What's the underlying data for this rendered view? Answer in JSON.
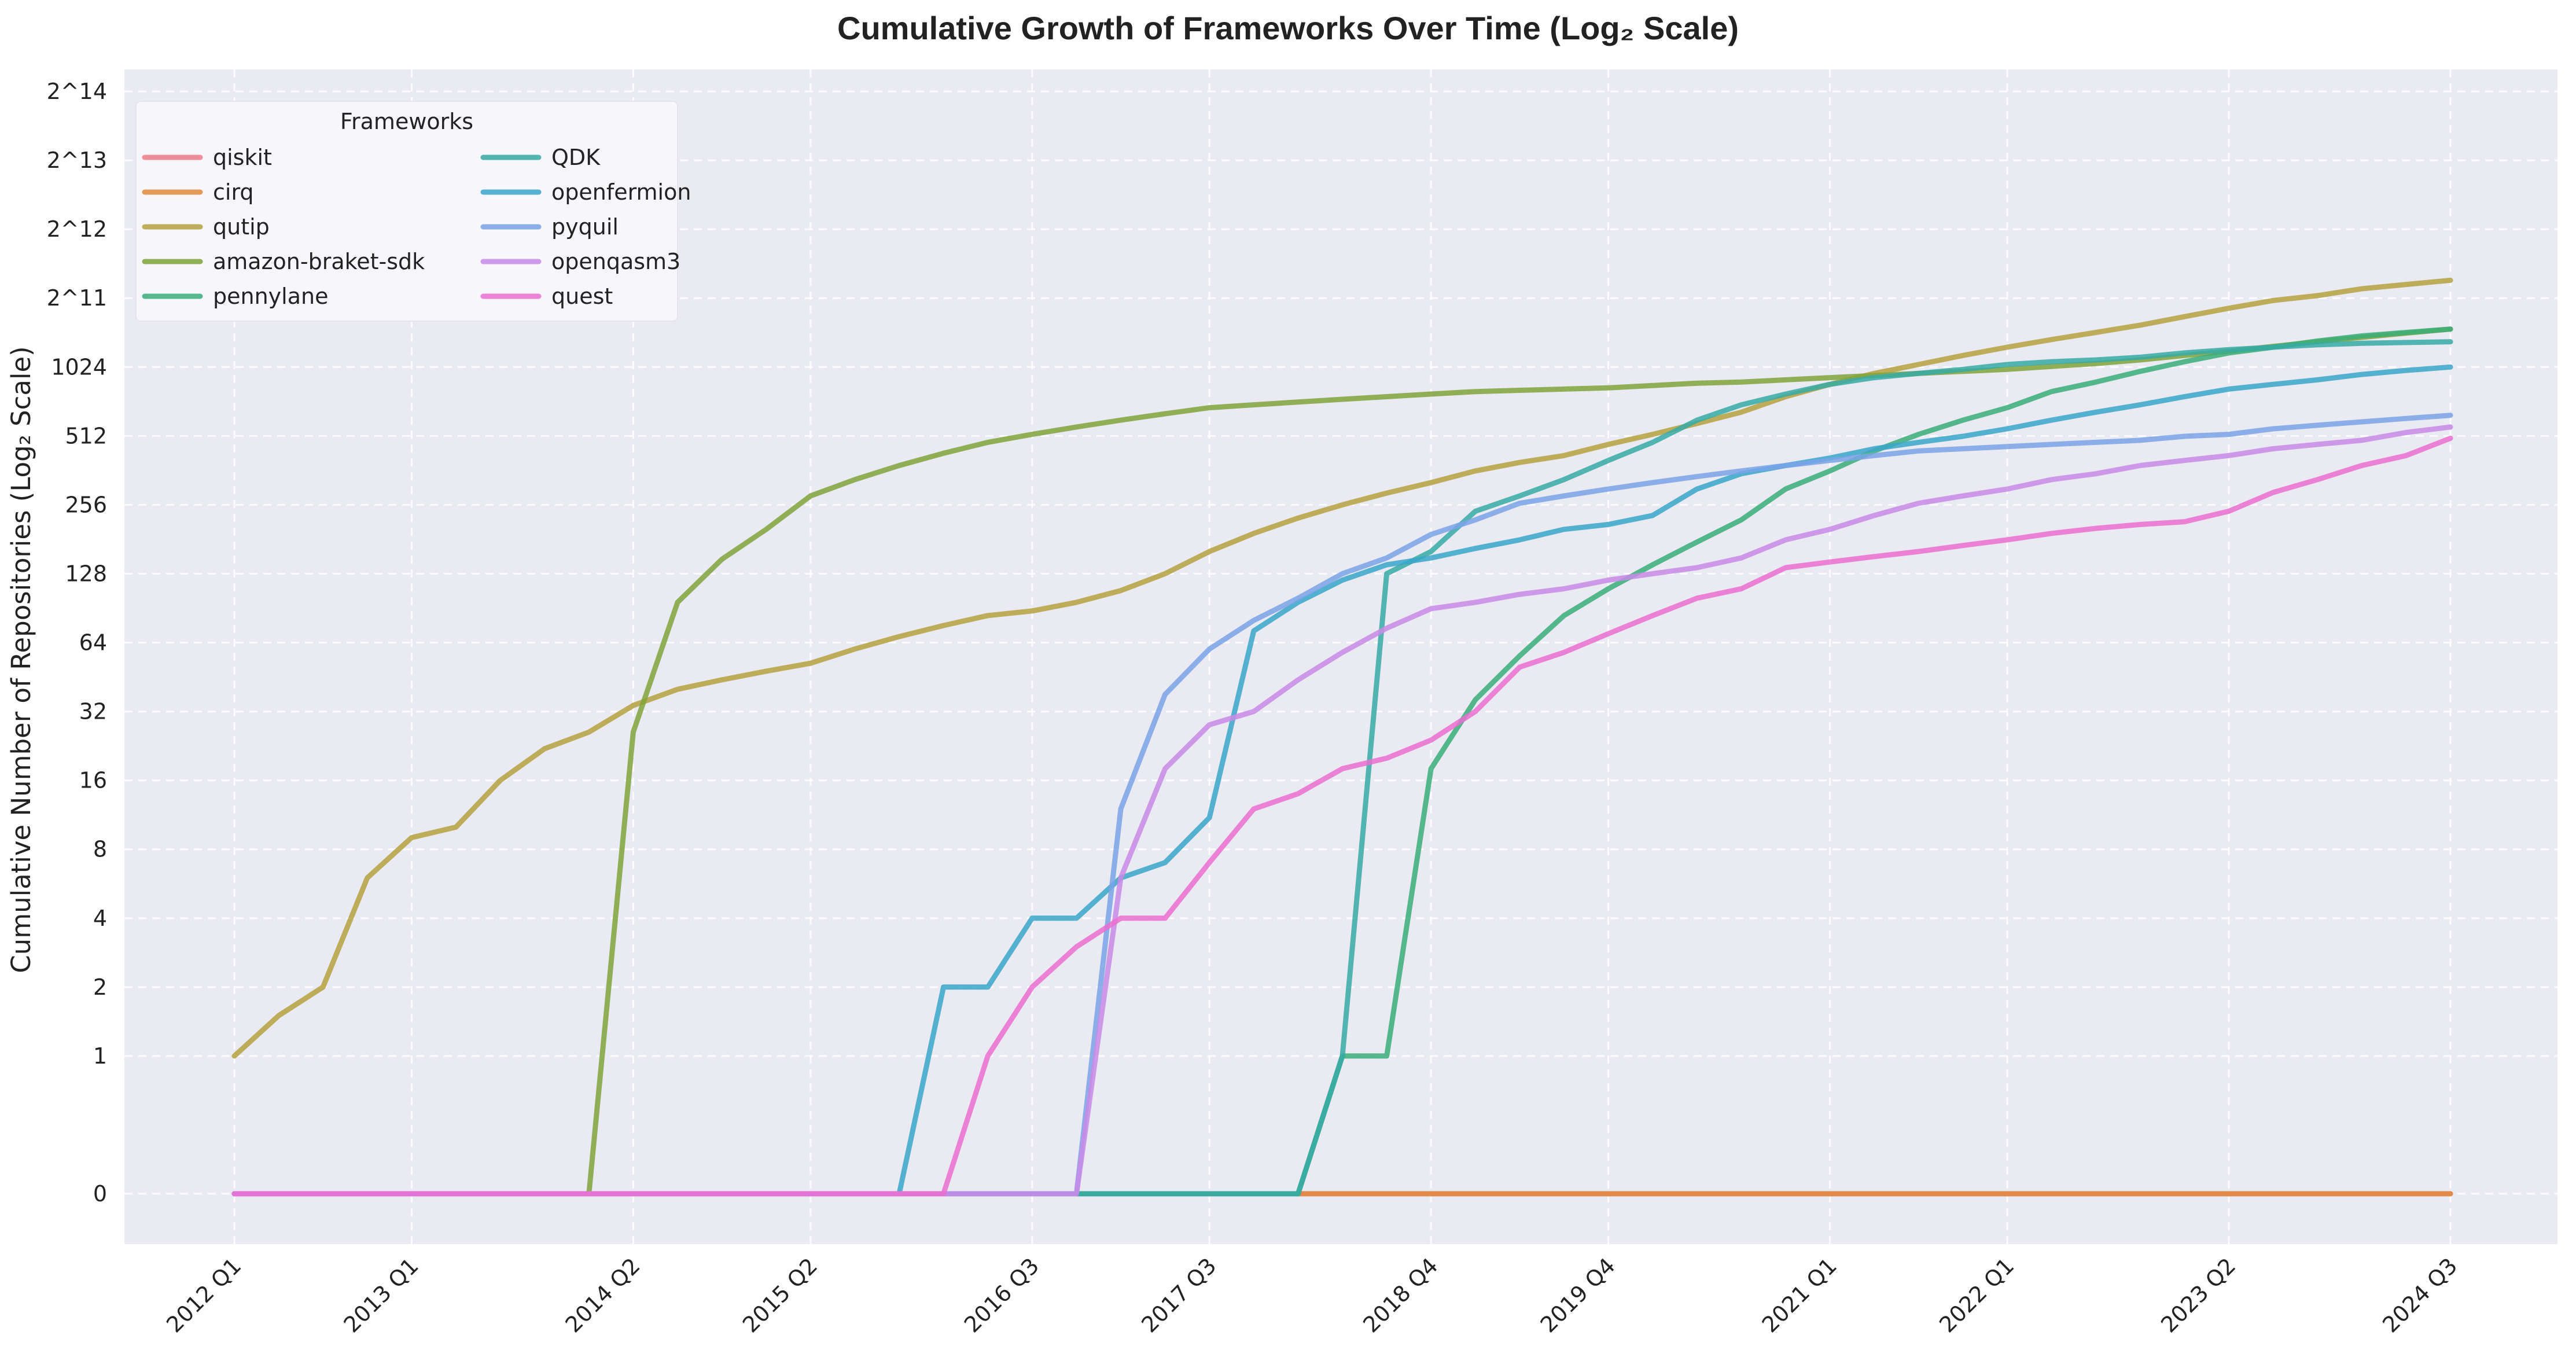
{
  "chart_data": {
    "type": "line",
    "title": "Cumulative Growth of Frameworks Over Time (Log₂ Scale)",
    "xlabel": "",
    "ylabel": "Cumulative Number of Repositories (Log₂ Scale)",
    "yscale": "symlog-base2",
    "grid": true,
    "legend": {
      "title": "Frameworks",
      "placement": "top-left",
      "columns": 2
    },
    "x_ticks": [
      "2012 Q1",
      "2013 Q1",
      "2014 Q2",
      "2015 Q2",
      "2016 Q3",
      "2017 Q3",
      "2018 Q4",
      "2019 Q4",
      "2021 Q1",
      "2022 Q1",
      "2023 Q2",
      "2024 Q3"
    ],
    "y_ticks": [
      {
        "value": 0,
        "label": "0"
      },
      {
        "value": 1,
        "label": "1"
      },
      {
        "value": 2,
        "label": "2"
      },
      {
        "value": 4,
        "label": "4"
      },
      {
        "value": 8,
        "label": "8"
      },
      {
        "value": 16,
        "label": "16"
      },
      {
        "value": 32,
        "label": "32"
      },
      {
        "value": 64,
        "label": "64"
      },
      {
        "value": 128,
        "label": "128"
      },
      {
        "value": 256,
        "label": "256"
      },
      {
        "value": 512,
        "label": "512"
      },
      {
        "value": 1024,
        "label": "1024"
      },
      {
        "value": 2048,
        "label": "2^11"
      },
      {
        "value": 4096,
        "label": "2^12"
      },
      {
        "value": 8192,
        "label": "2^13"
      },
      {
        "value": 16384,
        "label": "2^14"
      }
    ],
    "x": [
      "2012 Q1",
      "2012 Q2",
      "2012 Q3",
      "2012 Q4",
      "2013 Q1",
      "2013 Q2",
      "2013 Q3",
      "2013 Q4",
      "2014 Q1",
      "2014 Q2",
      "2014 Q3",
      "2014 Q4",
      "2015 Q1",
      "2015 Q2",
      "2015 Q3",
      "2015 Q4",
      "2016 Q1",
      "2016 Q2",
      "2016 Q3",
      "2016 Q4",
      "2017 Q1",
      "2017 Q2",
      "2017 Q3",
      "2017 Q4",
      "2018 Q1",
      "2018 Q2",
      "2018 Q3",
      "2018 Q4",
      "2019 Q1",
      "2019 Q2",
      "2019 Q3",
      "2019 Q4",
      "2020 Q1",
      "2020 Q2",
      "2020 Q3",
      "2020 Q4",
      "2021 Q1",
      "2021 Q2",
      "2021 Q3",
      "2021 Q4",
      "2022 Q1",
      "2022 Q2",
      "2022 Q3",
      "2022 Q4",
      "2023 Q1",
      "2023 Q2",
      "2023 Q3",
      "2023 Q4",
      "2024 Q1",
      "2024 Q2",
      "2024 Q3"
    ],
    "series": [
      {
        "name": "qiskit",
        "color": "#ec7d8b",
        "values": [
          0,
          0,
          0,
          0,
          0,
          0,
          0,
          0,
          0,
          0,
          0,
          0,
          0,
          0,
          0,
          0,
          0,
          0,
          0,
          0,
          0,
          0,
          0,
          0,
          0,
          0,
          0,
          0,
          0,
          0,
          0,
          0,
          0,
          0,
          0,
          0,
          0,
          0,
          0,
          0,
          0,
          0,
          0,
          0,
          0,
          0,
          0,
          0,
          0,
          0,
          0
        ]
      },
      {
        "name": "cirq",
        "color": "#e08a3c",
        "values": [
          0,
          0,
          0,
          0,
          0,
          0,
          0,
          0,
          0,
          0,
          0,
          0,
          0,
          0,
          0,
          0,
          0,
          0,
          0,
          0,
          0,
          0,
          0,
          0,
          0,
          0,
          0,
          0,
          0,
          0,
          0,
          0,
          0,
          0,
          0,
          0,
          0,
          0,
          0,
          0,
          0,
          0,
          0,
          0,
          0,
          0,
          0,
          0,
          0,
          0,
          0
        ]
      },
      {
        "name": "qutip",
        "color": "#b5a13e",
        "values": [
          1,
          1.5,
          2,
          6,
          9,
          10,
          16,
          22,
          26,
          34,
          40,
          44,
          48,
          52,
          60,
          68,
          76,
          84,
          88,
          96,
          108,
          128,
          160,
          192,
          224,
          256,
          288,
          320,
          360,
          392,
          420,
          470,
          520,
          580,
          650,
          760,
          860,
          960,
          1050,
          1150,
          1250,
          1350,
          1450,
          1560,
          1700,
          1850,
          2000,
          2100,
          2250,
          2350,
          2450
        ]
      },
      {
        "name": "amazon-braket-sdk",
        "color": "#7fa339",
        "values": [
          0,
          0,
          0,
          0,
          0,
          0,
          0,
          0,
          0,
          26,
          96,
          148,
          200,
          280,
          330,
          380,
          430,
          480,
          520,
          560,
          600,
          640,
          680,
          700,
          720,
          740,
          760,
          780,
          800,
          810,
          820,
          830,
          850,
          870,
          880,
          900,
          920,
          940,
          960,
          980,
          1000,
          1030,
          1060,
          1100,
          1150,
          1200,
          1260,
          1320,
          1380,
          1440,
          1500
        ]
      },
      {
        "name": "pennylane",
        "color": "#3aae79",
        "values": [
          0,
          0,
          0,
          0,
          0,
          0,
          0,
          0,
          0,
          0,
          0,
          0,
          0,
          0,
          0,
          0,
          0,
          0,
          0,
          0,
          0,
          0,
          0,
          0,
          0,
          1,
          1,
          18,
          36,
          56,
          84,
          110,
          140,
          176,
          220,
          300,
          360,
          440,
          520,
          600,
          680,
          800,
          880,
          980,
          1080,
          1180,
          1250,
          1330,
          1400,
          1450,
          1500
        ]
      },
      {
        "name": "QDK",
        "color": "#37aaa6",
        "values": [
          0,
          0,
          0,
          0,
          0,
          0,
          0,
          0,
          0,
          0,
          0,
          0,
          0,
          0,
          0,
          0,
          0,
          0,
          0,
          0,
          0,
          0,
          0,
          0,
          0,
          1,
          128,
          160,
          240,
          280,
          330,
          400,
          480,
          600,
          700,
          780,
          860,
          920,
          960,
          1000,
          1050,
          1080,
          1100,
          1130,
          1180,
          1220,
          1250,
          1280,
          1300,
          1310,
          1320
        ]
      },
      {
        "name": "openfermion",
        "color": "#3aa6c9",
        "values": [
          0,
          0,
          0,
          0,
          0,
          0,
          0,
          0,
          0,
          0,
          0,
          0,
          0,
          0,
          0,
          0,
          2,
          2,
          4,
          4,
          6,
          7,
          11,
          72,
          96,
          120,
          140,
          150,
          165,
          180,
          200,
          210,
          230,
          300,
          350,
          380,
          410,
          450,
          480,
          510,
          550,
          600,
          650,
          700,
          760,
          820,
          860,
          900,
          950,
          990,
          1024
        ]
      },
      {
        "name": "pyquil",
        "color": "#7aa3e8",
        "values": [
          0,
          0,
          0,
          0,
          0,
          0,
          0,
          0,
          0,
          0,
          0,
          0,
          0,
          0,
          0,
          0,
          0,
          0,
          0,
          0,
          12,
          38,
          60,
          80,
          100,
          128,
          150,
          190,
          220,
          260,
          280,
          300,
          320,
          340,
          360,
          380,
          400,
          420,
          440,
          450,
          460,
          470,
          480,
          490,
          510,
          520,
          550,
          570,
          590,
          610,
          630
        ]
      },
      {
        "name": "openqasm3",
        "color": "#c98ae6",
        "values": [
          0,
          0,
          0,
          0,
          0,
          0,
          0,
          0,
          0,
          0,
          0,
          0,
          0,
          0,
          0,
          0,
          0,
          0,
          0,
          0,
          6,
          18,
          28,
          32,
          44,
          58,
          74,
          90,
          96,
          104,
          110,
          120,
          128,
          136,
          150,
          180,
          200,
          230,
          260,
          280,
          300,
          330,
          350,
          380,
          400,
          420,
          450,
          470,
          490,
          530,
          560
        ]
      },
      {
        "name": "quest",
        "color": "#ea6fd0",
        "values": [
          0,
          0,
          0,
          0,
          0,
          0,
          0,
          0,
          0,
          0,
          0,
          0,
          0,
          0,
          0,
          0,
          0,
          1,
          2,
          3,
          4,
          4,
          7,
          12,
          14,
          18,
          20,
          24,
          32,
          50,
          58,
          70,
          84,
          100,
          110,
          136,
          144,
          152,
          160,
          170,
          180,
          192,
          202,
          210,
          216,
          240,
          290,
          330,
          380,
          420,
          500
        ]
      }
    ]
  }
}
